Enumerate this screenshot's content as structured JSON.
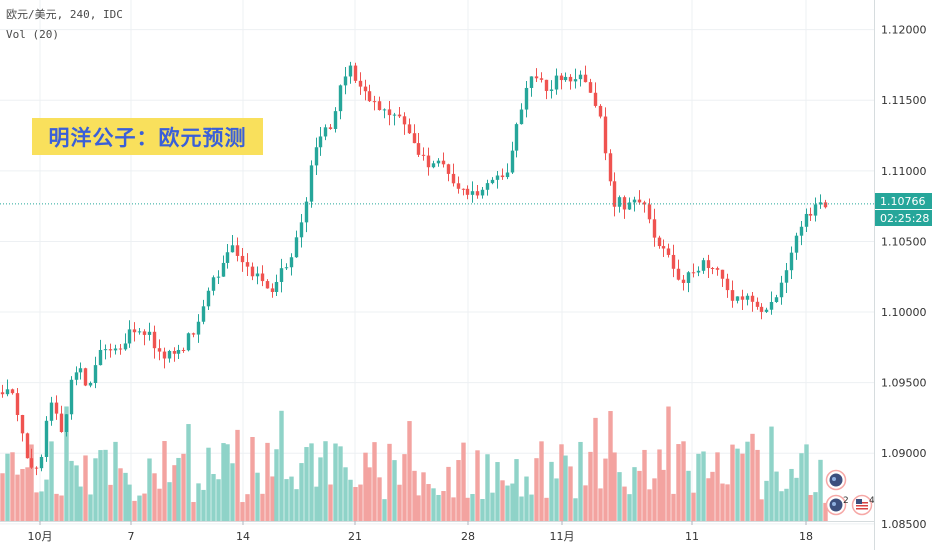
{
  "chart_data": {
    "type": "candlestick",
    "symbol_line": "欧元/美元, 240, IDC",
    "volume_label": "Vol (20)",
    "annotation": "明洋公子：欧元预测",
    "y_ticks": [
      "1.12000",
      "1.11500",
      "1.11000",
      "1.10500",
      "1.10000",
      "1.09500",
      "1.09000",
      "1.08500"
    ],
    "ylim": [
      1.0852,
      1.1221
    ],
    "x_ticks": [
      "10月",
      "7",
      "14",
      "21",
      "28",
      "11月",
      "11",
      "18"
    ],
    "last_price": "1.10766",
    "countdown": "02:25:28",
    "grid": true,
    "colors": {
      "up": "#26a69a",
      "down": "#ef5350",
      "vol_up": "#8fd3c8",
      "vol_down": "#f3a3a0",
      "price_line": "#26a69a",
      "axis_text": "#333333",
      "grid": "#edf0f3"
    },
    "events": [
      {
        "icon": "earth-icon",
        "count": ""
      },
      {
        "icon": "eu-flag-icon",
        "count": "2"
      },
      {
        "icon": "us-flag-icon",
        "count": "4"
      }
    ],
    "close_path": [
      [
        0,
        1.0944
      ],
      [
        14,
        1.0938
      ],
      [
        29,
        1.0893
      ],
      [
        39,
        1.0888
      ],
      [
        49,
        1.0935
      ],
      [
        61,
        1.0916
      ],
      [
        75,
        1.0962
      ],
      [
        89,
        1.0948
      ],
      [
        103,
        1.0978
      ],
      [
        118,
        1.0969
      ],
      [
        133,
        1.099
      ],
      [
        152,
        1.098
      ],
      [
        168,
        1.0968
      ],
      [
        182,
        1.0975
      ],
      [
        196,
        1.099
      ],
      [
        210,
        1.102
      ],
      [
        222,
        1.1032
      ],
      [
        232,
        1.105
      ],
      [
        244,
        1.103
      ],
      [
        258,
        1.1025
      ],
      [
        270,
        1.101
      ],
      [
        282,
        1.103
      ],
      [
        294,
        1.1045
      ],
      [
        305,
        1.1075
      ],
      [
        315,
        1.112
      ],
      [
        330,
        1.113
      ],
      [
        340,
        1.116
      ],
      [
        350,
        1.1172
      ],
      [
        360,
        1.116
      ],
      [
        375,
        1.1148
      ],
      [
        392,
        1.114
      ],
      [
        410,
        1.1125
      ],
      [
        428,
        1.1105
      ],
      [
        444,
        1.1105
      ],
      [
        460,
        1.1083
      ],
      [
        478,
        1.1087
      ],
      [
        495,
        1.1095
      ],
      [
        510,
        1.1105
      ],
      [
        522,
        1.115
      ],
      [
        532,
        1.1168
      ],
      [
        545,
        1.116
      ],
      [
        560,
        1.1165
      ],
      [
        578,
        1.1168
      ],
      [
        590,
        1.1155
      ],
      [
        600,
        1.1135
      ],
      [
        612,
        1.108
      ],
      [
        625,
        1.1075
      ],
      [
        640,
        1.108
      ],
      [
        652,
        1.1055
      ],
      [
        665,
        1.1045
      ],
      [
        680,
        1.102
      ],
      [
        700,
        1.1035
      ],
      [
        715,
        1.103
      ],
      [
        730,
        1.101
      ],
      [
        745,
        1.101
      ],
      [
        760,
        1.0999
      ],
      [
        772,
        1.101
      ],
      [
        785,
        1.1025
      ],
      [
        798,
        1.106
      ],
      [
        812,
        1.107
      ],
      [
        825,
        1.1077
      ],
      [
        830,
        1.1077
      ]
    ]
  }
}
